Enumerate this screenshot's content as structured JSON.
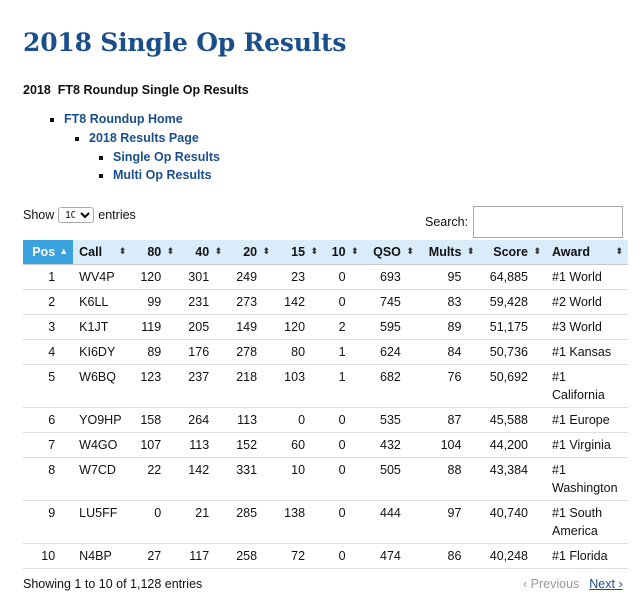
{
  "page_title": "2018 Single Op Results",
  "subtitle": "2018  FT8 Roundup Single Op Results",
  "nav": {
    "home": "FT8 Roundup Home",
    "results_page": "2018 Results Page",
    "single_op": "Single Op Results",
    "multi_op": "Multi Op Results"
  },
  "controls": {
    "show_label": "Show",
    "entries_value": "10",
    "entries_label": "entries",
    "search_label": "Search:",
    "search_value": ""
  },
  "table": {
    "headers": [
      "Pos",
      "Call",
      "80",
      "40",
      "20",
      "15",
      "10",
      "QSO",
      "Mults",
      "Score",
      "Award"
    ],
    "sort_icons": {
      "active": "▲",
      "inactive": "⬍"
    },
    "rows": [
      [
        "1",
        "WV4P",
        "120",
        "301",
        "249",
        "23",
        "0",
        "693",
        "95",
        "64,885",
        "#1 World"
      ],
      [
        "2",
        "K6LL",
        "99",
        "231",
        "273",
        "142",
        "0",
        "745",
        "83",
        "59,428",
        "#2 World"
      ],
      [
        "3",
        "K1JT",
        "119",
        "205",
        "149",
        "120",
        "2",
        "595",
        "89",
        "51,175",
        "#3 World"
      ],
      [
        "4",
        "KI6DY",
        "89",
        "176",
        "278",
        "80",
        "1",
        "624",
        "84",
        "50,736",
        "#1 Kansas"
      ],
      [
        "5",
        "W6BQ",
        "123",
        "237",
        "218",
        "103",
        "1",
        "682",
        "76",
        "50,692",
        "#1 California"
      ],
      [
        "6",
        "YO9HP",
        "158",
        "264",
        "113",
        "0",
        "0",
        "535",
        "87",
        "45,588",
        "#1 Europe"
      ],
      [
        "7",
        "W4GO",
        "107",
        "113",
        "152",
        "60",
        "0",
        "432",
        "104",
        "44,200",
        "#1 Virginia"
      ],
      [
        "8",
        "W7CD",
        "22",
        "142",
        "331",
        "10",
        "0",
        "505",
        "88",
        "43,384",
        "#1 Washington"
      ],
      [
        "9",
        "LU5FF",
        "0",
        "21",
        "285",
        "138",
        "0",
        "444",
        "97",
        "40,740",
        "#1 South America"
      ],
      [
        "10",
        "N4BP",
        "27",
        "117",
        "258",
        "72",
        "0",
        "474",
        "86",
        "40,248",
        "#1 Florida"
      ]
    ]
  },
  "footer": {
    "info": "Showing 1 to 10 of 1,128 entries",
    "previous": "Previous",
    "next": "Next"
  },
  "colors": {
    "title": "#1a4f8c",
    "header_bg": "#d9ecf9",
    "active_header_bg": "#3aa3df"
  },
  "icons": {
    "sort_ascending": "sort-ascending-icon",
    "sort_both": "sort-both-icon",
    "chevron_left": "chevron-left-icon",
    "chevron_right": "chevron-right-icon"
  }
}
